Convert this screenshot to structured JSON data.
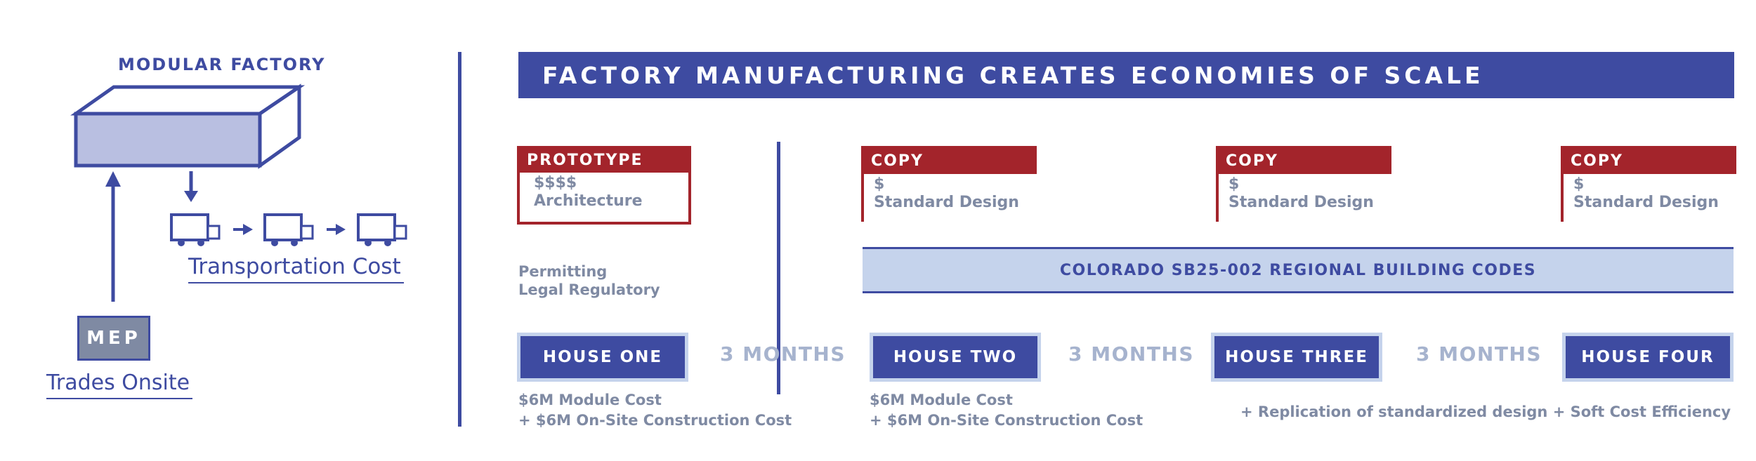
{
  "left_panel": {
    "factory_title": "MODULAR FACTORY",
    "transport_label": "Transportation Cost",
    "mep_label": "MEP",
    "trades_label": "Trades Onsite"
  },
  "header": {
    "title": "FACTORY MANUFACTURING CREATES ECONOMIES OF SCALE"
  },
  "stages": {
    "prototype": {
      "label": "PROTOTYPE",
      "cost": "$$$$",
      "desc": "Architecture"
    },
    "copies": [
      {
        "label": "COPY",
        "cost": "$",
        "desc": "Standard Design"
      },
      {
        "label": "COPY",
        "cost": "$",
        "desc": "Standard Design"
      },
      {
        "label": "COPY",
        "cost": "$",
        "desc": "Standard Design"
      }
    ]
  },
  "permitting": {
    "line1": "Permitting",
    "line2": "Legal Regulatory"
  },
  "code_band": "COLORADO SB25-002 REGIONAL BUILDING CODES",
  "houses": [
    {
      "label": "HOUSE ONE"
    },
    {
      "label": "HOUSE TWO"
    },
    {
      "label": "HOUSE THREE"
    },
    {
      "label": "HOUSE FOUR"
    }
  ],
  "months": [
    "3 MONTHS",
    "3 MONTHS",
    "3 MONTHS"
  ],
  "cost_notes": {
    "house_one": {
      "line1": "$6M Module Cost",
      "line2": "+ $6M On-Site Construction Cost"
    },
    "house_two": {
      "line1": "$6M Module Cost",
      "line2": "+ $6M On-Site Construction Cost"
    },
    "replication": "+ Replication of standardized design + Soft Cost Efficiency"
  },
  "colors": {
    "primary_blue": "#3e4ba1",
    "light_blue": "#c5d3ec",
    "accent_red": "#a3242b",
    "muted_gray": "#7f8aa3"
  }
}
